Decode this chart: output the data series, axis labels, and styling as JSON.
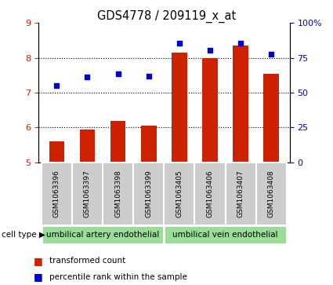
{
  "title": "GDS4778 / 209119_x_at",
  "samples": [
    "GSM1063396",
    "GSM1063397",
    "GSM1063398",
    "GSM1063399",
    "GSM1063405",
    "GSM1063406",
    "GSM1063407",
    "GSM1063408"
  ],
  "bar_values": [
    5.6,
    5.95,
    6.2,
    6.05,
    8.15,
    8.0,
    8.35,
    7.55
  ],
  "scatter_values": [
    7.2,
    7.45,
    7.55,
    7.48,
    8.42,
    8.22,
    8.42,
    8.1
  ],
  "ylim_left": [
    5,
    9
  ],
  "ylim_right": [
    0,
    100
  ],
  "yticks_left": [
    5,
    6,
    7,
    8,
    9
  ],
  "yticks_right": [
    0,
    25,
    50,
    75,
    100
  ],
  "ytick_labels_right": [
    "0",
    "25",
    "50",
    "75",
    "100%"
  ],
  "bar_color": "#cc2200",
  "scatter_color": "#0000cc",
  "bar_width": 0.5,
  "group1_label": "umbilical artery endothelial",
  "group2_label": "umbilical vein endothelial",
  "cell_type_label": "cell type",
  "legend_bar_label": "transformed count",
  "legend_scatter_label": "percentile rank within the sample",
  "group_bg_color": "#99dd99",
  "sample_bg_color": "#cccccc",
  "left_tick_color": "#cc2200",
  "right_tick_color": "#0000cc",
  "hgrid_values": [
    6,
    7,
    8
  ]
}
